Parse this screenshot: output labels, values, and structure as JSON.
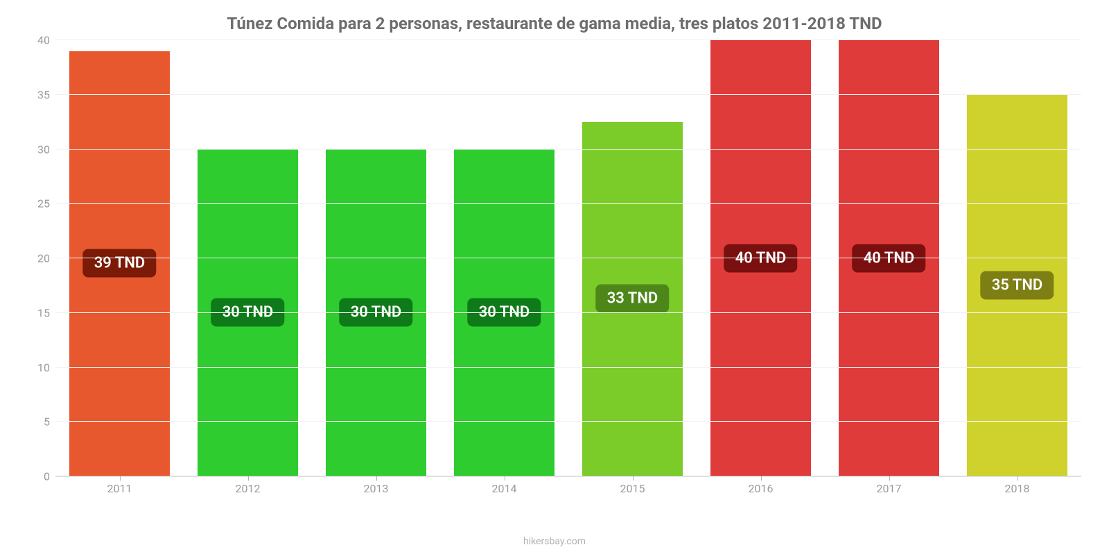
{
  "chart": {
    "type": "bar",
    "title": "Túnez Comida para 2 personas, restaurante de gama media, tres platos 2011-2018 TND",
    "title_fontsize": 24,
    "title_color": "#6d6d6d",
    "background_color": "#ffffff",
    "grid_color": "#f2f2f2",
    "axis_line_color": "#b0b0b0",
    "tick_label_color": "#9a9a9a",
    "tick_label_fontsize": 16,
    "badge_fontsize": 22,
    "badge_text_color": "#ffffff",
    "ylim": [
      0,
      40
    ],
    "ytick_step": 5,
    "yticks": [
      0,
      5,
      10,
      15,
      20,
      25,
      30,
      35,
      40
    ],
    "bar_width_ratio": 0.78,
    "categories": [
      "2011",
      "2012",
      "2013",
      "2014",
      "2015",
      "2016",
      "2017",
      "2018"
    ],
    "values": [
      39,
      30,
      30,
      30,
      33,
      40,
      40,
      35
    ],
    "bar_display_heights": [
      39,
      30,
      30,
      30,
      32.5,
      40,
      40,
      35
    ],
    "bar_labels": [
      "39 TND",
      "30 TND",
      "30 TND",
      "30 TND",
      "33 TND",
      "40 TND",
      "40 TND",
      "35 TND"
    ],
    "bar_colors": [
      "#e8582f",
      "#2ecc2e",
      "#2ecc2e",
      "#2ecc2e",
      "#7bcc29",
      "#e03b3b",
      "#e03b3b",
      "#cfd22c"
    ],
    "badge_colors": [
      "#7a1a07",
      "#0f7a1a",
      "#0f7a1a",
      "#0f7a1a",
      "#4d8719",
      "#7a0f0f",
      "#7a0f0f",
      "#7d7f14"
    ],
    "credit": "hikersbay.com",
    "credit_color": "#b0b0b0",
    "credit_fontsize": 14
  }
}
